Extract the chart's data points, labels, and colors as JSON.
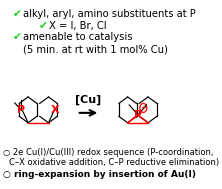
{
  "background_color": "#ffffff",
  "check_color": "#22cc22",
  "text_color": "#000000",
  "red_color": "#ff0000",
  "lines": [
    {
      "check": true,
      "indent": 0.07,
      "text": "alkyl, aryl, amino substituents at P",
      "size": 7.2
    },
    {
      "check": true,
      "indent": 0.22,
      "text": "X = I, Br, Cl",
      "size": 7.2
    },
    {
      "check": true,
      "indent": 0.07,
      "text": "amenable to catalysis",
      "size": 7.2
    },
    {
      "check": false,
      "indent": 0.07,
      "text": "(5 min. at rt with 1 mol% Cu)",
      "size": 7.2
    }
  ],
  "bottom_lines": [
    {
      "circle": true,
      "text": "2e Cu(I)/Cu(III) redox sequence (P-coordination,",
      "size": 6.0,
      "bold": false
    },
    {
      "circle": false,
      "text": "C–X oxidative addition, C–P reductive elimination)",
      "size": 6.0,
      "bold": false
    },
    {
      "circle": true,
      "text": "ring-expansion by insertion of Au(I)",
      "size": 6.5,
      "bold": true
    }
  ],
  "arrow_label": "[Cu]",
  "figsize": [
    2.22,
    1.89
  ],
  "dpi": 100
}
